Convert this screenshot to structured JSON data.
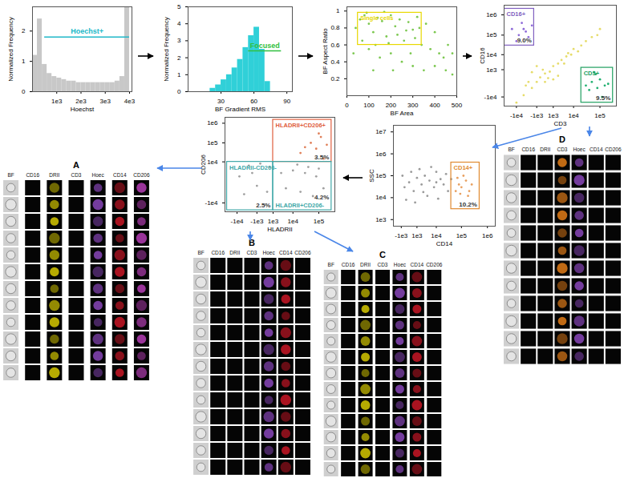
{
  "chart_data": [
    {
      "type": "histogram",
      "xlabel": "Hoechst",
      "ylabel": "Normalized Frequency",
      "color": "#c8c8c8",
      "bins": [
        0,
        200,
        400,
        600,
        800,
        1000,
        1200,
        1400,
        1600,
        1800,
        2000,
        2200,
        2400,
        2600,
        2800,
        3000,
        3200,
        3400,
        3600,
        3800,
        4000
      ],
      "counts": [
        1.2,
        2.4,
        0.9,
        0.6,
        0.5,
        0.45,
        0.4,
        0.35,
        0.35,
        0.3,
        0.3,
        0.3,
        0.3,
        0.3,
        0.3,
        0.3,
        0.3,
        0.35,
        0.5,
        2.8
      ],
      "xlim": [
        0,
        4100
      ],
      "ylim": [
        0,
        2.8
      ],
      "xticks": [
        {
          "value": 1000,
          "label": "1e3"
        },
        {
          "value": 2000,
          "label": "2e3"
        },
        {
          "value": 3000,
          "label": "3e3"
        },
        {
          "value": 4000,
          "label": "4e3"
        }
      ],
      "yticks": [
        0,
        1,
        2
      ],
      "gates": [
        {
          "label": "Hoechst+",
          "x": [
            500,
            4000
          ],
          "y": 1.8,
          "color": "#20b8c8"
        }
      ]
    },
    {
      "type": "histogram",
      "xlabel": "BF Gradient RMS",
      "ylabel": "Normalized Frequency",
      "color": "#30d0d8",
      "bins": [
        20,
        25,
        30,
        35,
        40,
        45,
        50,
        55,
        60,
        65,
        70,
        75
      ],
      "counts": [
        0.2,
        0.4,
        0.7,
        1.0,
        1.4,
        1.9,
        2.6,
        3.3,
        3.8,
        2.5,
        0.6
      ],
      "xlim": [
        0,
        95
      ],
      "ylim": [
        0,
        5
      ],
      "xticks": [
        30,
        60,
        90
      ],
      "yticks": [
        0,
        1,
        2,
        3,
        4,
        5
      ],
      "gates": [
        {
          "label": "Focused",
          "x": [
            55,
            85
          ],
          "y": 2.4,
          "color": "#30c040"
        }
      ]
    },
    {
      "type": "scatter",
      "xlabel": "BF Area",
      "ylabel": "BF Aspect Ratio",
      "xlim": [
        0,
        500
      ],
      "ylim": [
        0,
        1.05
      ],
      "xticks": [
        0,
        100,
        200,
        300,
        400,
        500
      ],
      "yticks": [
        0.2,
        0.4,
        0.6,
        0.8,
        1
      ],
      "series": [
        {
          "color": "#7cc850",
          "values": [
            [
              60,
              0.9
            ],
            [
              80,
              0.95
            ],
            [
              100,
              0.85
            ],
            [
              120,
              0.75
            ],
            [
              140,
              0.92
            ],
            [
              160,
              0.88
            ],
            [
              180,
              0.7
            ],
            [
              200,
              0.95
            ],
            [
              220,
              0.82
            ],
            [
              240,
              0.9
            ],
            [
              260,
              0.65
            ],
            [
              280,
              0.87
            ],
            [
              300,
              0.78
            ],
            [
              320,
              0.93
            ],
            [
              340,
              0.6
            ],
            [
              360,
              0.85
            ],
            [
              380,
              0.55
            ],
            [
              400,
              0.75
            ],
            [
              420,
              0.5
            ],
            [
              440,
              0.45
            ],
            [
              460,
              0.6
            ],
            [
              100,
              0.55
            ],
            [
              150,
              0.45
            ],
            [
              200,
              0.5
            ],
            [
              250,
              0.4
            ],
            [
              300,
              0.35
            ],
            [
              350,
              0.3
            ],
            [
              400,
              0.35
            ],
            [
              450,
              0.3
            ],
            [
              480,
              0.25
            ],
            [
              70,
              0.65
            ],
            [
              130,
              0.6
            ],
            [
              190,
              0.62
            ],
            [
              230,
              0.72
            ],
            [
              270,
              0.77
            ],
            [
              310,
              0.68
            ],
            [
              90,
              0.98
            ],
            [
              170,
              0.99
            ],
            [
              330,
              0.8
            ],
            [
              290,
              0.5
            ],
            [
              210,
              0.3
            ],
            [
              120,
              0.3
            ],
            [
              40,
              0.8
            ],
            [
              30,
              0.5
            ],
            [
              480,
              0.5
            ]
          ]
        }
      ],
      "gates": [
        {
          "label": "Single cells",
          "x": [
            50,
            340
          ],
          "y": [
            0.6,
            0.98
          ],
          "color": "#e8d800"
        }
      ]
    },
    {
      "type": "scatter",
      "log": true,
      "xlabel": "CD3",
      "ylabel": "CD16",
      "xlim": [
        -30000,
        400000
      ],
      "ylim": [
        -30000,
        3000000
      ],
      "xticks": [
        {
          "value": -10000,
          "label": "-1e4"
        },
        {
          "value": -1000,
          "label": "-1e3"
        },
        {
          "value": 1000,
          "label": "1e3"
        },
        {
          "value": 10000,
          "label": "1e4"
        },
        {
          "value": 100000,
          "label": "1e5"
        }
      ],
      "yticks": [
        {
          "value": -10000,
          "label": "-1e4"
        },
        {
          "value": 1000,
          "label": "1e3"
        },
        {
          "value": 10000,
          "label": "1e4"
        },
        {
          "value": 100000,
          "label": "1e5"
        },
        {
          "value": 1000000,
          "label": "1e6"
        }
      ],
      "series": [
        {
          "color": "#e6dc6a",
          "values": [
            [
              -10000,
              -20000
            ],
            [
              -5000,
              -8000
            ],
            [
              -2000,
              -3000
            ],
            [
              -1000,
              -1000
            ],
            [
              -500,
              -200
            ],
            [
              0,
              300
            ],
            [
              500,
              600
            ],
            [
              1000,
              2000
            ],
            [
              2000,
              3000
            ],
            [
              3000,
              5000
            ],
            [
              5000,
              8000
            ],
            [
              8000,
              10000
            ],
            [
              10000,
              20000
            ],
            [
              20000,
              30000
            ],
            [
              30000,
              50000
            ],
            [
              50000,
              80000
            ],
            [
              80000,
              100000
            ],
            [
              100000,
              200000
            ],
            [
              -3000,
              -1000
            ],
            [
              -2000,
              500
            ],
            [
              -1000,
              2000
            ],
            [
              0,
              -1000
            ],
            [
              1000,
              -500
            ],
            [
              2000,
              0
            ],
            [
              -4000,
              -2000
            ],
            [
              300,
              -300
            ],
            [
              -200,
              1000
            ],
            [
              4000,
              3000
            ],
            [
              6000,
              12000
            ],
            [
              15000,
              15000
            ]
          ]
        },
        {
          "color": "#8e6ad8",
          "values": [
            [
              -8000,
              100000
            ],
            [
              -5000,
              200000
            ],
            [
              -3000,
              80000
            ],
            [
              -2000,
              300000
            ],
            [
              -10000,
              50000
            ],
            [
              -6000,
              400000
            ],
            [
              -4000,
              150000
            ],
            [
              -15000,
              200000
            ]
          ]
        },
        {
          "color": "#20b070",
          "values": [
            [
              30000,
              -2000
            ],
            [
              50000,
              -1000
            ],
            [
              80000,
              -3000
            ],
            [
              100000,
              -500
            ],
            [
              150000,
              -2000
            ],
            [
              60000,
              500
            ],
            [
              40000,
              -4000
            ],
            [
              120000,
              -10000
            ],
            [
              70000,
              200
            ],
            [
              200000,
              -1500
            ]
          ]
        }
      ],
      "gates": [
        {
          "label": "CD16+",
          "annotation": "9.0%",
          "x": [
            -30000,
            -1500
          ],
          "y": [
            30000,
            2000000
          ],
          "color": "#8060c0"
        },
        {
          "label": "CD3+",
          "annotation": "9.5%",
          "x": [
            20000,
            300000
          ],
          "y": [
            -20000,
            1500
          ],
          "color": "#20a060"
        }
      ]
    },
    {
      "type": "scatter",
      "log": true,
      "xlabel": "CD14",
      "ylabel": "SSC",
      "xlim": [
        -3000,
        2000000
      ],
      "ylim": [
        500,
        20000000
      ],
      "xticks": [
        {
          "value": -1000,
          "label": "-1e3"
        },
        {
          "value": 1000,
          "label": "1e3"
        },
        {
          "value": 10000,
          "label": "1e4"
        },
        {
          "value": 100000,
          "label": "1e5"
        },
        {
          "value": 1000000,
          "label": "1e6"
        }
      ],
      "yticks": [
        {
          "value": 1000,
          "label": "1e3"
        },
        {
          "value": 10000,
          "label": "1e4"
        },
        {
          "value": 100000,
          "label": "1e5"
        },
        {
          "value": 1000000,
          "label": "1e6"
        },
        {
          "value": 10000000,
          "label": "1e7"
        }
      ],
      "series": [
        {
          "color": "#9a9a9a",
          "values": [
            [
              -500,
              30000
            ],
            [
              0,
              50000
            ],
            [
              500,
              20000
            ],
            [
              1000,
              80000
            ],
            [
              2000,
              40000
            ],
            [
              3000,
              100000
            ],
            [
              5000,
              60000
            ],
            [
              8000,
              30000
            ],
            [
              10000,
              150000
            ],
            [
              15000,
              70000
            ],
            [
              20000,
              40000
            ],
            [
              30000,
              20000
            ],
            [
              -800,
              100000
            ],
            [
              200,
              150000
            ],
            [
              1500,
              200000
            ],
            [
              4000,
              12000
            ],
            [
              6000,
              250000
            ],
            [
              12000,
              9000
            ],
            [
              700,
              6000
            ],
            [
              2500,
              18000
            ],
            [
              -300,
              8000
            ],
            [
              10000,
              50000
            ],
            [
              40000,
              70000
            ],
            [
              25000,
              120000
            ]
          ]
        },
        {
          "color": "#e8a060",
          "values": [
            [
              60000,
              20000
            ],
            [
              80000,
              40000
            ],
            [
              100000,
              30000
            ],
            [
              150000,
              60000
            ],
            [
              200000,
              20000
            ],
            [
              120000,
              100000
            ],
            [
              90000,
              15000
            ],
            [
              250000,
              40000
            ],
            [
              70000,
              80000
            ],
            [
              180000,
              12000
            ]
          ]
        }
      ],
      "gates": [
        {
          "label": "CD14+",
          "annotation": "10.2%",
          "x": [
            40000,
            500000
          ],
          "y": [
            3000,
            400000
          ],
          "color": "#e08a30"
        }
      ]
    },
    {
      "type": "scatter",
      "log": true,
      "xlabel": "HLADRII",
      "ylabel": "CD206",
      "xlim": [
        -30000,
        400000
      ],
      "ylim": [
        -30000,
        2000000
      ],
      "xticks": [
        {
          "value": -10000,
          "label": "-1e4"
        },
        {
          "value": -1000,
          "label": "-1e3"
        },
        {
          "value": 1000,
          "label": "1e3"
        },
        {
          "value": 10000,
          "label": "1e4"
        },
        {
          "value": 100000,
          "label": "1e5"
        }
      ],
      "yticks": [
        {
          "value": -10000,
          "label": "-1e4"
        },
        {
          "value": 10000,
          "label": "1e4"
        },
        {
          "value": 100000,
          "label": "1e5"
        },
        {
          "value": 1000000,
          "label": "1e6"
        }
      ],
      "series": [
        {
          "color": "#a0a0a0",
          "values": [
            [
              -5000,
              -3000
            ],
            [
              -2000,
              2000
            ],
            [
              -1000,
              -500
            ],
            [
              500,
              5000
            ],
            [
              -8000,
              1000
            ],
            [
              200,
              -2000
            ],
            [
              -3000,
              6000
            ],
            [
              3000,
              2000
            ],
            [
              5000,
              -1000
            ],
            [
              10000,
              3000
            ],
            [
              20000,
              -2000
            ],
            [
              40000,
              5000
            ],
            [
              80000,
              1000
            ],
            [
              15000,
              7000
            ],
            [
              60000,
              -4000
            ],
            [
              30000,
              2000
            ],
            [
              -500,
              8000
            ],
            [
              100000,
              4000
            ],
            [
              150000,
              -1000
            ]
          ]
        },
        {
          "color": "#e0805a",
          "values": [
            [
              20000,
              30000
            ],
            [
              50000,
              100000
            ],
            [
              80000,
              50000
            ],
            [
              120000,
              200000
            ],
            [
              200000,
              80000
            ],
            [
              100000,
              300000
            ],
            [
              30000,
              60000
            ],
            [
              150000,
              15000
            ]
          ]
        }
      ],
      "gates": [
        {
          "label": "HLADRII+CD206+",
          "annotation": "3.5%",
          "x": [
            1000,
            300000
          ],
          "y": [
            10000,
            1500000
          ],
          "color": "#e06040"
        },
        {
          "label": "HLADRII-CD206-",
          "annotation": "2.5%",
          "x": [
            -25000,
            1000
          ],
          "y": [
            -25000,
            10000
          ],
          "color": "#40a8a8"
        },
        {
          "label": "HLADRII+CD206-",
          "annotation": "4.2%",
          "x": [
            1000,
            300000
          ],
          "y": [
            -25000,
            10000
          ],
          "color": "#40a8a8"
        }
      ]
    }
  ],
  "galleries": {
    "channels": [
      "BF",
      "CD16",
      "DRII",
      "CD3",
      "Hoec",
      "CD14",
      "CD206"
    ],
    "colors": [
      "#b0b0b0",
      "#8e6ad8",
      "#f2e200",
      "#ff8c1a",
      "#9a4fd0",
      "#e0182a",
      "#cc44cc"
    ],
    "panels": [
      {
        "label": "A",
        "rows": 12,
        "stained": [
          "BF",
          "DRII",
          "Hoec",
          "CD14",
          "CD206"
        ]
      },
      {
        "label": "B",
        "rows": 13,
        "stained": [
          "BF",
          "Hoec",
          "CD14"
        ]
      },
      {
        "label": "C",
        "rows": 13,
        "stained": [
          "BF",
          "DRII",
          "Hoec",
          "CD14"
        ]
      },
      {
        "label": "D",
        "rows": 12,
        "stained": [
          "BF",
          "CD3",
          "Hoec"
        ]
      }
    ]
  }
}
